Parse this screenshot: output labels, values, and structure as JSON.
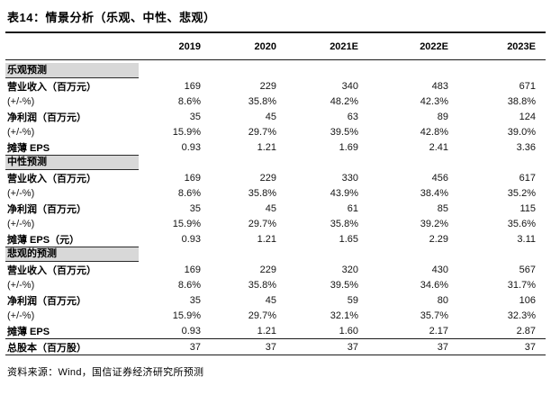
{
  "title": "表14：情景分析（乐观、中性、悲观）",
  "source_note": "资料来源：Wind，国信证券经济研究所预测",
  "colors": {
    "section_band": "#d8d8d8",
    "rule": "#1a1a1a",
    "text": "#141414"
  },
  "table": {
    "year_headers": [
      "2019",
      "2020",
      "2021E",
      "2022E",
      "2023E"
    ],
    "rows": [
      {
        "type": "section",
        "label": "乐观预测",
        "values": [
          "",
          "",
          "",
          "",
          ""
        ]
      },
      {
        "type": "data",
        "label": "营业收入（百万元）",
        "values": [
          "169",
          "229",
          "340",
          "483",
          "671"
        ]
      },
      {
        "type": "data",
        "label": "(+/-%)",
        "values": [
          "8.6%",
          "35.8%",
          "48.2%",
          "42.3%",
          "38.8%"
        ]
      },
      {
        "type": "data",
        "label": "净利润（百万元）",
        "values": [
          "35",
          "45",
          "63",
          "89",
          "124"
        ]
      },
      {
        "type": "data",
        "label": "(+/-%)",
        "values": [
          "15.9%",
          "29.7%",
          "39.5%",
          "42.8%",
          "39.0%"
        ]
      },
      {
        "type": "data",
        "label": "摊薄 EPS",
        "values": [
          "0.93",
          "1.21",
          "1.69",
          "2.41",
          "3.36"
        ]
      },
      {
        "type": "section",
        "label": "中性预测",
        "values": [
          "",
          "",
          "",
          "",
          ""
        ]
      },
      {
        "type": "data",
        "label": "营业收入（百万元）",
        "values": [
          "169",
          "229",
          "330",
          "456",
          "617"
        ]
      },
      {
        "type": "data",
        "label": "(+/-%)",
        "values": [
          "8.6%",
          "35.8%",
          "43.9%",
          "38.4%",
          "35.2%"
        ]
      },
      {
        "type": "data",
        "label": "净利润（百万元）",
        "values": [
          "35",
          "45",
          "61",
          "85",
          "115"
        ]
      },
      {
        "type": "data",
        "label": "(+/-%)",
        "values": [
          "15.9%",
          "29.7%",
          "35.8%",
          "39.2%",
          "35.6%"
        ]
      },
      {
        "type": "data",
        "label": "摊薄 EPS（元）",
        "values": [
          "0.93",
          "1.21",
          "1.65",
          "2.29",
          "3.11"
        ]
      },
      {
        "type": "section",
        "label": "悲观的预测",
        "values": [
          "",
          "",
          "",
          "",
          ""
        ]
      },
      {
        "type": "data",
        "label": "营业收入（百万元）",
        "values": [
          "169",
          "229",
          "320",
          "430",
          "567"
        ]
      },
      {
        "type": "data",
        "label": "(+/-%)",
        "values": [
          "8.6%",
          "35.8%",
          "39.5%",
          "34.6%",
          "31.7%"
        ]
      },
      {
        "type": "data",
        "label": "净利润（百万元）",
        "values": [
          "35",
          "45",
          "59",
          "80",
          "106"
        ]
      },
      {
        "type": "data",
        "label": "(+/-%)",
        "values": [
          "15.9%",
          "29.7%",
          "32.1%",
          "35.7%",
          "32.3%"
        ]
      },
      {
        "type": "data",
        "label": "摊薄 EPS",
        "values": [
          "0.93",
          "1.21",
          "1.60",
          "2.17",
          "2.87"
        ]
      },
      {
        "type": "total",
        "label": "总股本（百万股）",
        "values": [
          "37",
          "37",
          "37",
          "37",
          "37"
        ]
      }
    ]
  }
}
